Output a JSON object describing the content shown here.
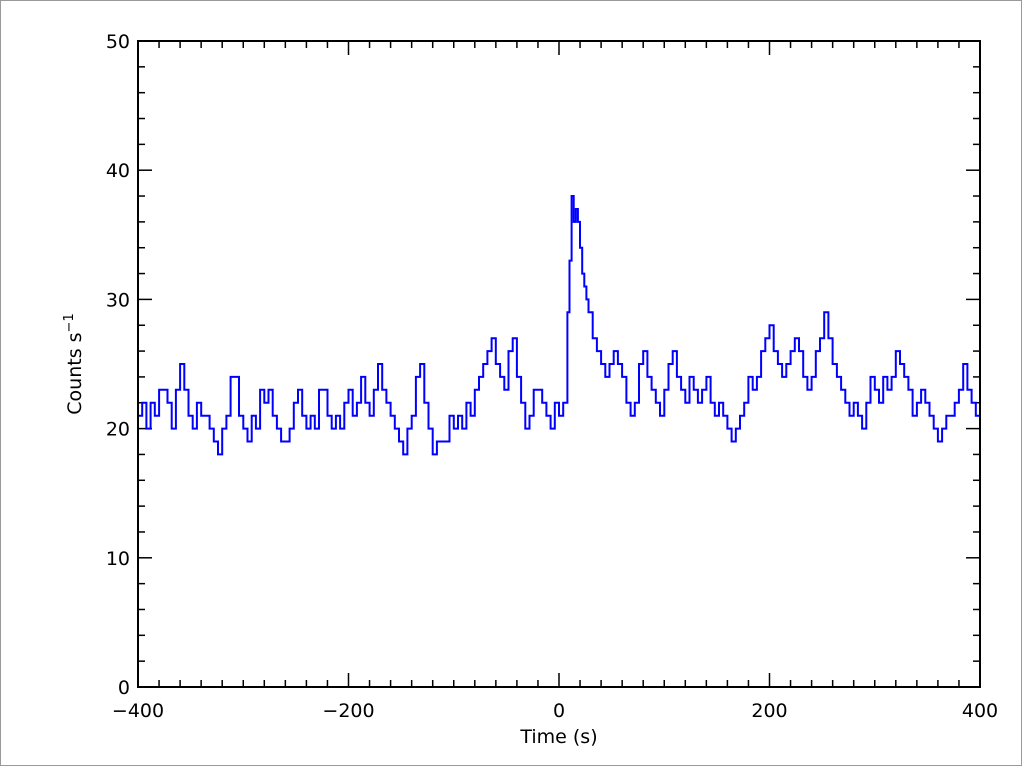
{
  "chart_data": {
    "type": "line",
    "title": "",
    "xlabel": "Time (s)",
    "ylabel": "Counts s",
    "ylabel_superscript": "−1",
    "xlim": [
      -400,
      400
    ],
    "ylim": [
      0,
      50
    ],
    "x_ticks": [
      -400,
      -200,
      0,
      200,
      400
    ],
    "x_tick_labels": [
      "−400",
      "−200",
      "0",
      "200",
      "400"
    ],
    "y_ticks": [
      0,
      10,
      20,
      30,
      40,
      50
    ],
    "y_tick_labels": [
      "0",
      "10",
      "20",
      "30",
      "40",
      "50"
    ],
    "grid": false,
    "legend": "none",
    "step": true,
    "series": [
      {
        "color": "#0000ff",
        "points": [
          [
            -400,
            21
          ],
          [
            -396,
            22
          ],
          [
            -392,
            20
          ],
          [
            -388,
            22
          ],
          [
            -384,
            21
          ],
          [
            -380,
            23
          ],
          [
            -372,
            22
          ],
          [
            -368,
            20
          ],
          [
            -364,
            23
          ],
          [
            -360,
            25
          ],
          [
            -356,
            23
          ],
          [
            -352,
            21
          ],
          [
            -348,
            20
          ],
          [
            -344,
            22
          ],
          [
            -340,
            21
          ],
          [
            -332,
            20
          ],
          [
            -328,
            19
          ],
          [
            -324,
            18
          ],
          [
            -320,
            20
          ],
          [
            -316,
            21
          ],
          [
            -312,
            24
          ],
          [
            -304,
            21
          ],
          [
            -300,
            20
          ],
          [
            -296,
            19
          ],
          [
            -292,
            21
          ],
          [
            -288,
            20
          ],
          [
            -284,
            23
          ],
          [
            -280,
            22
          ],
          [
            -276,
            23
          ],
          [
            -272,
            21
          ],
          [
            -268,
            20
          ],
          [
            -264,
            19
          ],
          [
            -256,
            20
          ],
          [
            -252,
            22
          ],
          [
            -248,
            23
          ],
          [
            -244,
            21
          ],
          [
            -240,
            20
          ],
          [
            -236,
            21
          ],
          [
            -232,
            20
          ],
          [
            -228,
            23
          ],
          [
            -220,
            21
          ],
          [
            -216,
            20
          ],
          [
            -212,
            21
          ],
          [
            -208,
            20
          ],
          [
            -204,
            22
          ],
          [
            -200,
            23
          ],
          [
            -196,
            21
          ],
          [
            -192,
            22
          ],
          [
            -188,
            24
          ],
          [
            -184,
            22
          ],
          [
            -180,
            21
          ],
          [
            -176,
            23
          ],
          [
            -172,
            25
          ],
          [
            -168,
            23
          ],
          [
            -164,
            22
          ],
          [
            -160,
            21
          ],
          [
            -156,
            20
          ],
          [
            -152,
            19
          ],
          [
            -148,
            18
          ],
          [
            -144,
            20
          ],
          [
            -140,
            21
          ],
          [
            -136,
            24
          ],
          [
            -132,
            25
          ],
          [
            -128,
            22
          ],
          [
            -124,
            20
          ],
          [
            -120,
            18
          ],
          [
            -116,
            19
          ],
          [
            -104,
            21
          ],
          [
            -100,
            20
          ],
          [
            -96,
            21
          ],
          [
            -92,
            20
          ],
          [
            -88,
            22
          ],
          [
            -84,
            21
          ],
          [
            -80,
            23
          ],
          [
            -76,
            24
          ],
          [
            -72,
            25
          ],
          [
            -68,
            26
          ],
          [
            -64,
            27
          ],
          [
            -60,
            25
          ],
          [
            -56,
            24
          ],
          [
            -52,
            23
          ],
          [
            -48,
            26
          ],
          [
            -44,
            27
          ],
          [
            -40,
            24
          ],
          [
            -36,
            22
          ],
          [
            -32,
            20
          ],
          [
            -28,
            21
          ],
          [
            -24,
            23
          ],
          [
            -16,
            22
          ],
          [
            -12,
            21
          ],
          [
            -8,
            20
          ],
          [
            -4,
            22
          ],
          [
            0,
            21
          ],
          [
            4,
            22
          ],
          [
            8,
            29
          ],
          [
            10,
            33
          ],
          [
            12,
            38
          ],
          [
            14,
            36
          ],
          [
            16,
            37
          ],
          [
            18,
            36
          ],
          [
            20,
            34
          ],
          [
            22,
            32
          ],
          [
            24,
            31
          ],
          [
            26,
            30
          ],
          [
            28,
            29
          ],
          [
            32,
            27
          ],
          [
            36,
            26
          ],
          [
            40,
            25
          ],
          [
            44,
            24
          ],
          [
            48,
            25
          ],
          [
            52,
            26
          ],
          [
            56,
            25
          ],
          [
            60,
            24
          ],
          [
            64,
            22
          ],
          [
            68,
            21
          ],
          [
            72,
            22
          ],
          [
            76,
            25
          ],
          [
            80,
            26
          ],
          [
            84,
            24
          ],
          [
            88,
            23
          ],
          [
            92,
            22
          ],
          [
            96,
            21
          ],
          [
            100,
            23
          ],
          [
            104,
            25
          ],
          [
            108,
            26
          ],
          [
            112,
            24
          ],
          [
            116,
            23
          ],
          [
            120,
            22
          ],
          [
            124,
            24
          ],
          [
            128,
            23
          ],
          [
            132,
            22
          ],
          [
            136,
            23
          ],
          [
            140,
            24
          ],
          [
            144,
            22
          ],
          [
            148,
            21
          ],
          [
            152,
            22
          ],
          [
            156,
            21
          ],
          [
            160,
            20
          ],
          [
            164,
            19
          ],
          [
            168,
            20
          ],
          [
            172,
            21
          ],
          [
            176,
            22
          ],
          [
            180,
            24
          ],
          [
            184,
            23
          ],
          [
            188,
            24
          ],
          [
            192,
            26
          ],
          [
            196,
            27
          ],
          [
            200,
            28
          ],
          [
            204,
            26
          ],
          [
            208,
            25
          ],
          [
            212,
            24
          ],
          [
            216,
            25
          ],
          [
            220,
            26
          ],
          [
            224,
            27
          ],
          [
            228,
            26
          ],
          [
            232,
            24
          ],
          [
            236,
            23
          ],
          [
            240,
            24
          ],
          [
            244,
            26
          ],
          [
            248,
            27
          ],
          [
            252,
            29
          ],
          [
            256,
            27
          ],
          [
            260,
            25
          ],
          [
            264,
            24
          ],
          [
            268,
            23
          ],
          [
            272,
            22
          ],
          [
            276,
            21
          ],
          [
            280,
            22
          ],
          [
            284,
            21
          ],
          [
            288,
            20
          ],
          [
            292,
            22
          ],
          [
            296,
            24
          ],
          [
            300,
            23
          ],
          [
            304,
            22
          ],
          [
            308,
            24
          ],
          [
            312,
            23
          ],
          [
            316,
            24
          ],
          [
            320,
            26
          ],
          [
            324,
            25
          ],
          [
            328,
            24
          ],
          [
            332,
            23
          ],
          [
            336,
            21
          ],
          [
            340,
            22
          ],
          [
            344,
            23
          ],
          [
            348,
            22
          ],
          [
            352,
            21
          ],
          [
            356,
            20
          ],
          [
            360,
            19
          ],
          [
            364,
            20
          ],
          [
            368,
            21
          ],
          [
            376,
            22
          ],
          [
            380,
            23
          ],
          [
            384,
            25
          ],
          [
            388,
            23
          ],
          [
            392,
            22
          ],
          [
            396,
            21
          ],
          [
            400,
            21
          ]
        ]
      }
    ]
  }
}
